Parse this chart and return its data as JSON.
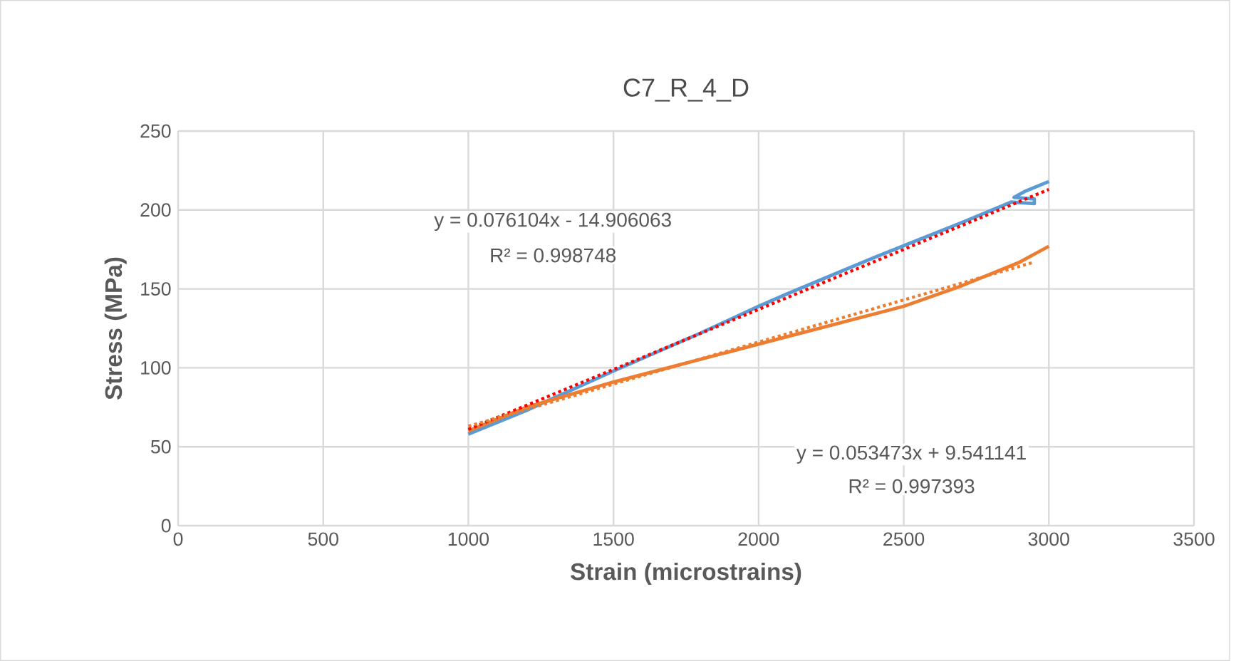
{
  "chart_data": {
    "type": "line",
    "title": "C7_R_4_D",
    "xlabel": "Strain (microstrains)",
    "ylabel": "Stress (MPa)",
    "xlim": [
      0,
      3500
    ],
    "xticks": [
      0,
      500,
      1000,
      1500,
      2000,
      2500,
      3000,
      3500
    ],
    "ylim": [
      0,
      250
    ],
    "yticks": [
      0,
      50,
      100,
      150,
      200,
      250
    ],
    "grid": true,
    "series": [
      {
        "color": "#5b9bd5",
        "x": [
          1000,
          1200,
          1500,
          1800,
          2000,
          2100,
          2400,
          2700,
          2870,
          2950,
          2950,
          2880,
          2920,
          3000
        ],
        "values": [
          58,
          73,
          98,
          122,
          139,
          147,
          170,
          192,
          205,
          204,
          207,
          208,
          212,
          218
        ]
      },
      {
        "color": "#ed7d31",
        "x": [
          1000,
          1200,
          1500,
          2000,
          2500,
          2700,
          2900,
          3000
        ],
        "values": [
          60,
          75,
          91,
          115,
          139,
          152,
          167,
          177
        ]
      },
      {
        "color": "#ff0000",
        "line_style": "dotted",
        "x": [
          1000,
          3000
        ],
        "values": [
          61,
          213
        ]
      },
      {
        "color": "#ed7d31",
        "line_style": "dotted",
        "x": [
          1000,
          2950
        ],
        "values": [
          63,
          167
        ]
      }
    ],
    "annotations": [
      "y = 0.076104x - 14.906063",
      "R² = 0.998748",
      "y = 0.053473x + 9.541141",
      "R² = 0.997393"
    ]
  }
}
